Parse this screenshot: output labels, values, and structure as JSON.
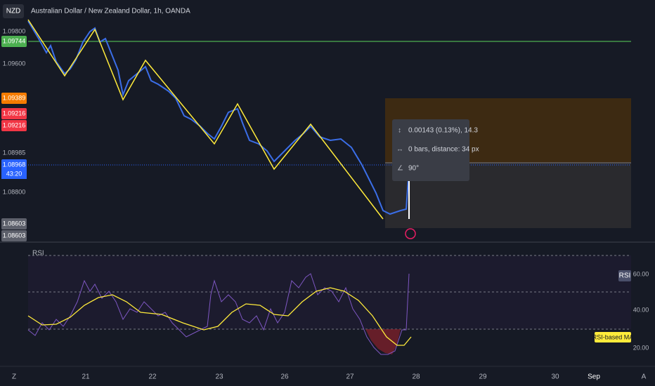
{
  "header": {
    "symbol": "NZD",
    "title": "Australian Dollar / New Zealand Dollar, 1h, OANDA"
  },
  "price_axis": {
    "labels": [
      "1.09800",
      "1.09744",
      "1.09600",
      "1.09389",
      "1.09216",
      "1.09216",
      "1.08985",
      "1.08968",
      "1.08800",
      "1.08603",
      "1.08603"
    ],
    "countdown": "43:20"
  },
  "measure": {
    "change": "0.00143 (0.13%), 14.3",
    "bars": "0 bars, distance: 34 px",
    "angle": "90°"
  },
  "rsi": {
    "label": "RSI",
    "badge": "RSI",
    "ma_badge": "RSI-based MA",
    "levels": [
      "60.00",
      "40.00",
      "20.00"
    ]
  },
  "time_axis": [
    "Z",
    "21",
    "22",
    "23",
    "26",
    "27",
    "28",
    "29",
    "30",
    "Sep",
    "A"
  ]
}
